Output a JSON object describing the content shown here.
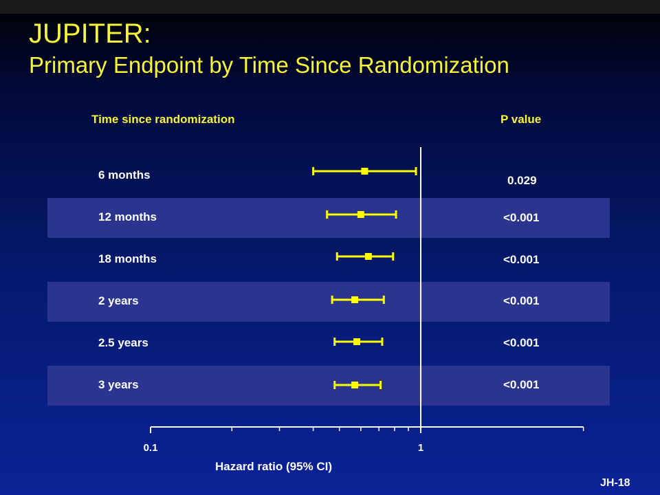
{
  "title": "JUPITER:",
  "subtitle": "Primary Endpoint by Time Since Randomization",
  "slide_id": "JH-18",
  "colors": {
    "accent": "#f7f43a",
    "band": "#2b3590",
    "marker": "#ffff00",
    "text": "#ffffff"
  },
  "chart_data": {
    "type": "forest",
    "scale": "log",
    "xlabel": "Hazard ratio (95% CI)",
    "xlim": [
      0.1,
      4
    ],
    "reference_line": 1,
    "x_tick_labels": [
      {
        "value": 0.1,
        "label": "0.1"
      },
      {
        "value": 1,
        "label": "1"
      }
    ],
    "x_minor_ticks": [
      0.2,
      0.3,
      0.4,
      0.5,
      0.6,
      0.7,
      0.8,
      0.9,
      4
    ],
    "left_header": "Time since randomization",
    "right_header": "P value",
    "rows": [
      {
        "label": "6 months",
        "hr": 0.62,
        "lo": 0.4,
        "hi": 0.96,
        "p": "0.029",
        "shaded": false
      },
      {
        "label": "12 months",
        "hr": 0.6,
        "lo": 0.45,
        "hi": 0.81,
        "p": "<0.001",
        "shaded": true
      },
      {
        "label": "18 months",
        "hr": 0.64,
        "lo": 0.49,
        "hi": 0.79,
        "p": "<0.001",
        "shaded": false
      },
      {
        "label": "2 years",
        "hr": 0.57,
        "lo": 0.47,
        "hi": 0.73,
        "p": "<0.001",
        "shaded": true
      },
      {
        "label": "2.5 years",
        "hr": 0.58,
        "lo": 0.48,
        "hi": 0.72,
        "p": "<0.001",
        "shaded": false
      },
      {
        "label": "3 years",
        "hr": 0.57,
        "lo": 0.48,
        "hi": 0.71,
        "p": "<0.001",
        "shaded": true
      }
    ]
  }
}
